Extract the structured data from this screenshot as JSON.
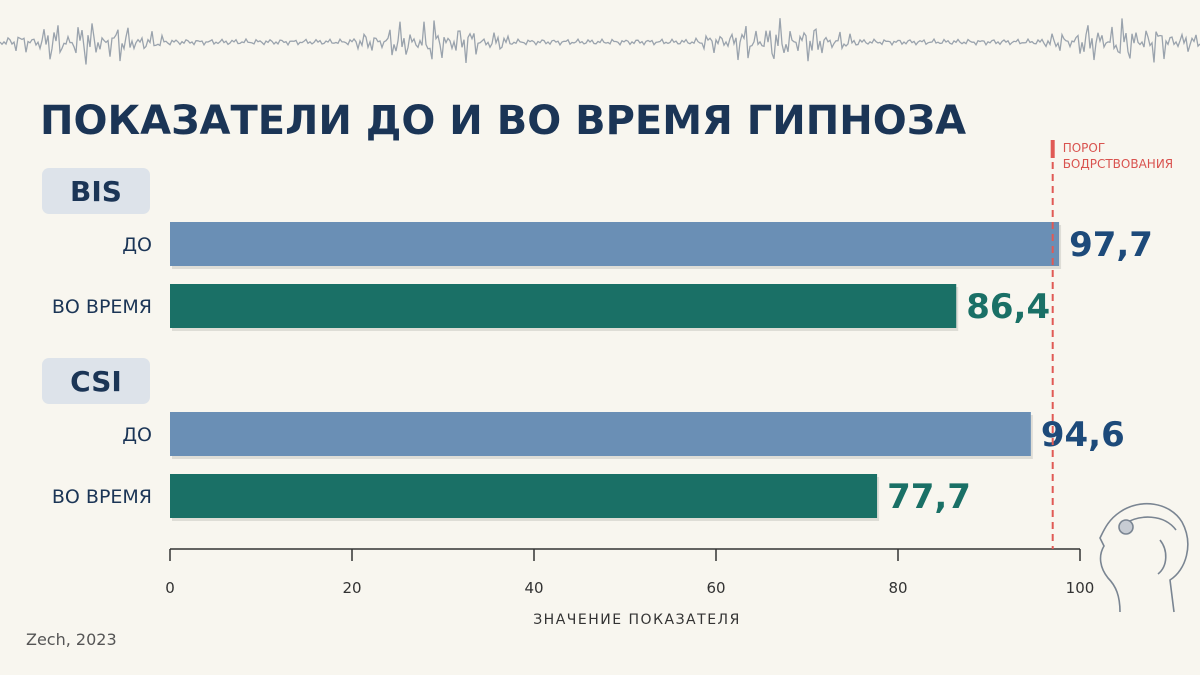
{
  "title": "ПОКАЗАТЕЛИ ДО И ВО ВРЕМЯ ГИПНОЗА",
  "source": "Zech, 2023",
  "threshold": {
    "label_line1": "ПОРОГ",
    "label_line2": "БОДРСТВОВАНИЯ",
    "value": 97,
    "color": "#e05a55"
  },
  "colors": {
    "before": "#6a8fb5",
    "during": "#1a7066",
    "before_text": "#1d4a7a",
    "during_text": "#1a7066",
    "group_badge_bg": "#dde3ea"
  },
  "icon": "head-sensor-icon",
  "decor": "eeg-wave-decoration",
  "chart_data": {
    "type": "bar",
    "orientation": "horizontal",
    "title": "ПОКАЗАТЕЛИ ДО И ВО ВРЕМЯ ГИПНОЗА",
    "xlabel": "ЗНАЧЕНИЕ ПОКАЗАТЕЛЯ",
    "xlim": [
      0,
      100
    ],
    "xticks": [
      "0",
      "20",
      "40",
      "60",
      "80",
      "100"
    ],
    "groups": [
      {
        "name": "BIS",
        "bars": [
          {
            "label": "ДО",
            "value": 97.7,
            "value_text": "97,7",
            "series": "before"
          },
          {
            "label": "ВО ВРЕМЯ",
            "value": 86.4,
            "value_text": "86,4",
            "series": "during"
          }
        ]
      },
      {
        "name": "CSI",
        "bars": [
          {
            "label": "ДО",
            "value": 94.6,
            "value_text": "94,6",
            "series": "before"
          },
          {
            "label": "ВО ВРЕМЯ",
            "value": 77.7,
            "value_text": "77,7",
            "series": "during"
          }
        ]
      }
    ]
  }
}
